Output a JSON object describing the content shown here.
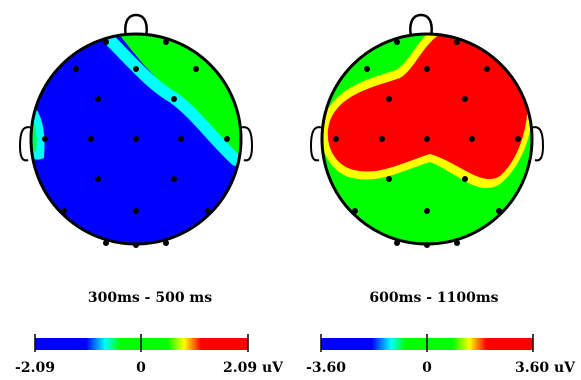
{
  "maps": [
    {
      "time_window": "300ms - 500 ms",
      "scale": {
        "min": "-2.09",
        "mid": "0",
        "max": "2.09 uV"
      }
    },
    {
      "time_window": "600ms - 1100ms",
      "scale": {
        "min": "-3.60",
        "mid": "0",
        "max": "3.60 uV"
      }
    }
  ],
  "colors": {
    "negative": "#0000ff",
    "low": "#00ffff",
    "zero": "#00ff00",
    "high": "#ffff00",
    "positive": "#ff0000",
    "outline": "#000000",
    "electrode": "#000000"
  },
  "icons": [
    "head-outline-icon",
    "nose-icon",
    "ear-icon",
    "electrode-icon"
  ]
}
